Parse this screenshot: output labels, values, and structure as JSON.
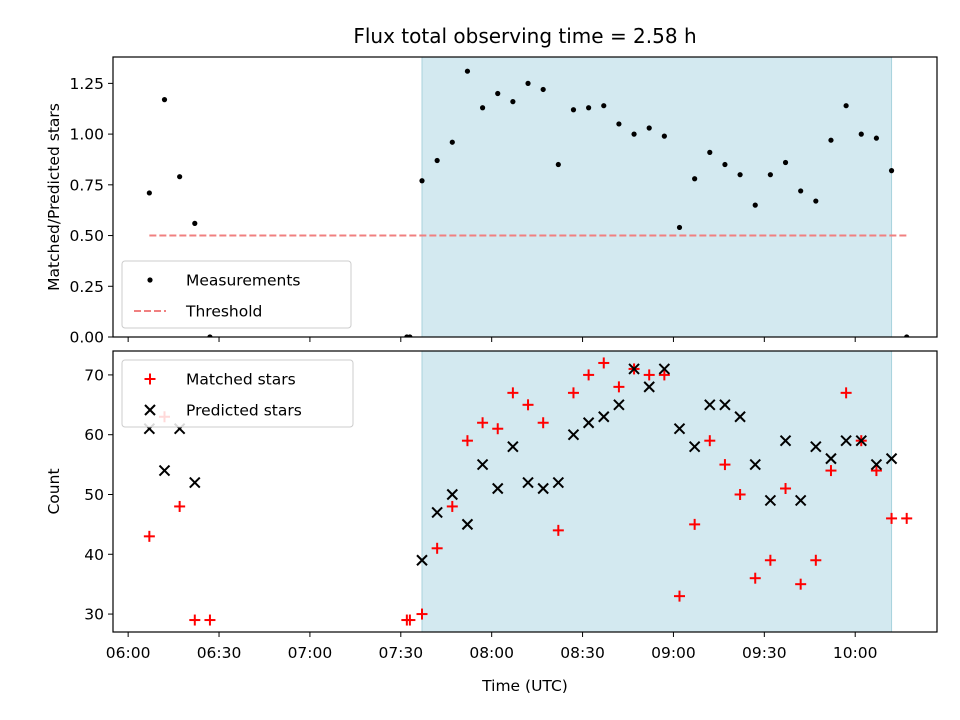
{
  "chart_data": {
    "type": "scatter",
    "title": "Flux total observing time = 2.58 h",
    "xlabel": "Time (UTC)",
    "x_ticks": [
      "06:00",
      "06:30",
      "07:00",
      "07:30",
      "08:00",
      "08:30",
      "09:00",
      "09:30",
      "10:00"
    ],
    "x_tick_minutes": [
      360,
      390,
      420,
      450,
      480,
      510,
      540,
      570,
      600
    ],
    "xlim_minutes": [
      355,
      627
    ],
    "shaded_span_minutes": [
      457,
      612
    ],
    "shaded_color": "#d3e9f0",
    "panels": [
      {
        "ylabel": "Matched/Predicted stars",
        "ylim": [
          0,
          1.38
        ],
        "y_ticks": [
          "0.00",
          "0.25",
          "0.50",
          "0.75",
          "1.00",
          "1.25"
        ],
        "y_tick_values": [
          0,
          0.25,
          0.5,
          0.75,
          1.0,
          1.25
        ],
        "legend": {
          "position": "lower-left",
          "entries": [
            "Measurements",
            "Threshold"
          ]
        },
        "threshold": {
          "value": 0.5,
          "x_range_minutes": [
            367,
            617
          ],
          "color": "#f08080",
          "label": "Threshold"
        },
        "series": [
          {
            "name": "Measurements",
            "marker": "dot",
            "color": "#000000",
            "x": [
              367,
              372,
              377,
              382,
              387,
              452,
              453,
              457,
              462,
              467,
              472,
              477,
              482,
              487,
              492,
              497,
              502,
              507,
              512,
              517,
              522,
              527,
              532,
              537,
              542,
              547,
              552,
              557,
              562,
              567,
              572,
              577,
              582,
              587,
              592,
              597,
              602,
              607,
              612,
              617
            ],
            "y": [
              0.71,
              1.17,
              0.79,
              0.56,
              0.0,
              0.0,
              0.0,
              0.77,
              0.87,
              0.96,
              1.31,
              1.13,
              1.2,
              1.16,
              1.25,
              1.22,
              0.85,
              1.12,
              1.13,
              1.14,
              1.05,
              1.0,
              1.03,
              0.99,
              0.54,
              0.78,
              0.91,
              0.85,
              0.8,
              0.65,
              0.8,
              0.86,
              0.72,
              0.67,
              0.97,
              1.14,
              1.0,
              0.98,
              0.82,
              0.0
            ]
          }
        ]
      },
      {
        "ylabel": "Count",
        "ylim": [
          27,
          74
        ],
        "y_ticks": [
          "30",
          "40",
          "50",
          "60",
          "70"
        ],
        "y_tick_values": [
          30,
          40,
          50,
          60,
          70
        ],
        "legend": {
          "position": "top-left",
          "entries": [
            "Matched stars",
            "Predicted stars"
          ]
        },
        "series": [
          {
            "name": "Matched stars",
            "marker": "plus",
            "color": "#ff0000",
            "x": [
              367,
              372,
              377,
              382,
              387,
              452,
              453,
              457,
              462,
              467,
              472,
              477,
              482,
              487,
              492,
              497,
              502,
              507,
              512,
              517,
              522,
              527,
              532,
              537,
              542,
              547,
              552,
              557,
              562,
              567,
              572,
              577,
              582,
              587,
              592,
              597,
              602,
              607,
              612,
              617
            ],
            "y": [
              43,
              63,
              48,
              29,
              29,
              29,
              29,
              30,
              41,
              48,
              59,
              62,
              61,
              67,
              65,
              62,
              44,
              67,
              70,
              72,
              68,
              71,
              70,
              70,
              33,
              45,
              59,
              55,
              50,
              36,
              39,
              51,
              35,
              39,
              54,
              67,
              59,
              54,
              46,
              46
            ]
          },
          {
            "name": "Predicted stars",
            "marker": "x",
            "color": "#000000",
            "x": [
              367,
              372,
              377,
              382,
              457,
              462,
              467,
              472,
              477,
              482,
              487,
              492,
              497,
              502,
              507,
              512,
              517,
              522,
              527,
              532,
              537,
              542,
              547,
              552,
              557,
              562,
              567,
              572,
              577,
              582,
              587,
              592,
              597,
              602,
              607,
              612
            ],
            "y": [
              61,
              54,
              61,
              52,
              39,
              47,
              50,
              45,
              55,
              51,
              58,
              52,
              51,
              52,
              60,
              62,
              63,
              65,
              71,
              68,
              71,
              61,
              58,
              65,
              65,
              63,
              55,
              49,
              59,
              49,
              58,
              56,
              59,
              59,
              55,
              56
            ]
          }
        ]
      }
    ]
  }
}
